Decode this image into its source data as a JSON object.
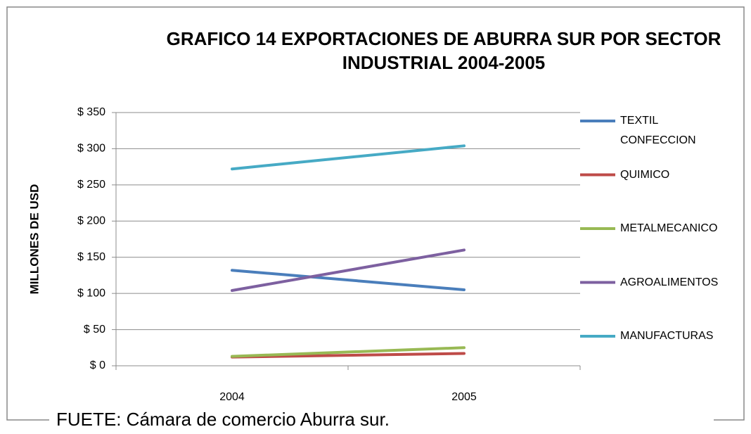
{
  "chart_data": {
    "type": "line",
    "title": "GRAFICO 14 EXPORTACIONES DE ABURRA SUR POR SECTOR INDUSTRIAL 2004-2005",
    "y_label": "MILLONES DE USD",
    "source": "FUETE: Cámara de comercio Aburra sur.",
    "categories": [
      "2004",
      "2005"
    ],
    "series": [
      {
        "name": "TEXTIL CONFECCION",
        "color": "#4a7ebb",
        "values": [
          132,
          105
        ]
      },
      {
        "name": "QUIMICO",
        "color": "#be4b48",
        "values": [
          12,
          17
        ]
      },
      {
        "name": "METALMECANICO",
        "color": "#98b954",
        "values": [
          13,
          25
        ]
      },
      {
        "name": "AGROALIMENTOS",
        "color": "#7d60a0",
        "values": [
          104,
          160
        ]
      },
      {
        "name": "MANUFACTURAS",
        "color": "#46aac5",
        "values": [
          272,
          304
        ]
      }
    ],
    "ylim": [
      0,
      350
    ],
    "yticks": [
      {
        "value": 0,
        "label": "$ 0"
      },
      {
        "value": 50,
        "label": "$ 50"
      },
      {
        "value": 100,
        "label": "$ 100"
      },
      {
        "value": 150,
        "label": "$ 150"
      },
      {
        "value": 200,
        "label": "$ 200"
      },
      {
        "value": 250,
        "label": "$ 250"
      },
      {
        "value": 300,
        "label": "$ 300"
      },
      {
        "value": 350,
        "label": "$ 350"
      }
    ],
    "grid": true,
    "legend": "right"
  }
}
